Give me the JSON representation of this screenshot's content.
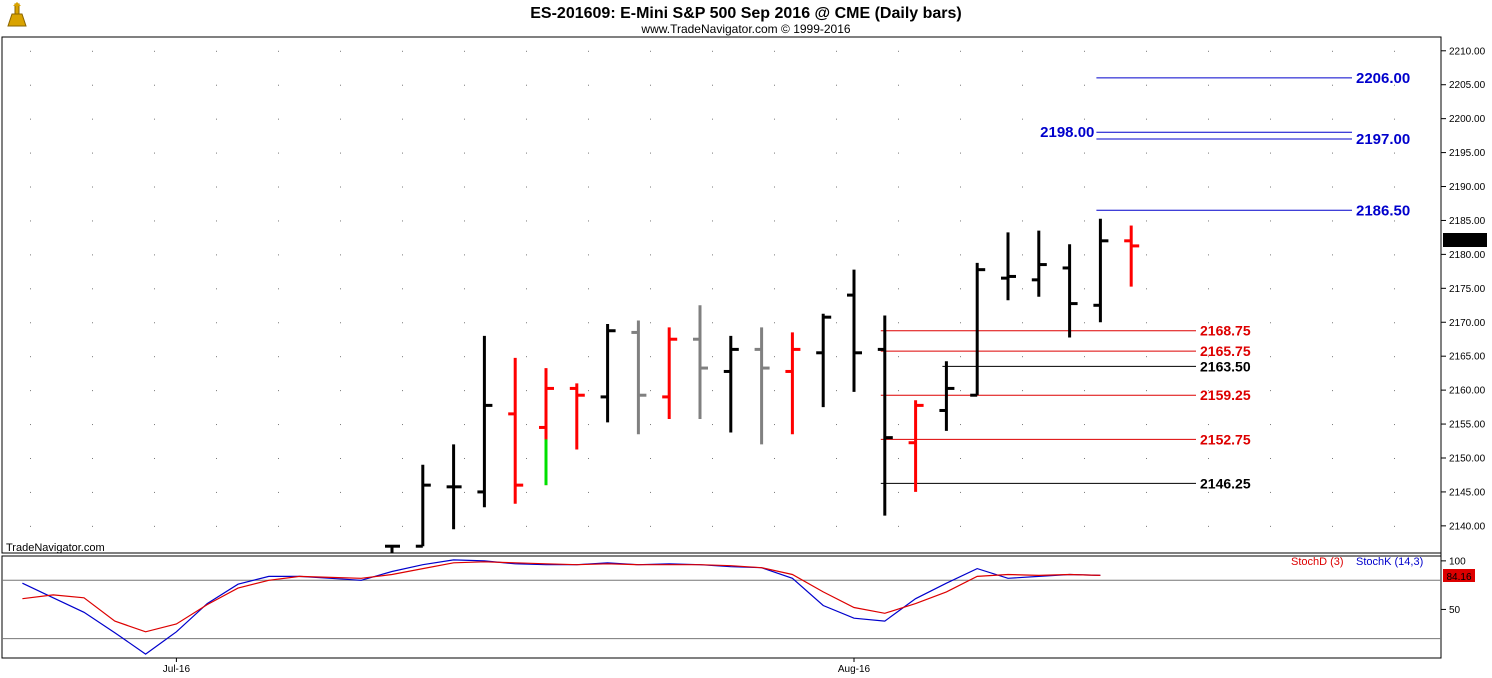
{
  "header": {
    "title": "ES-201609:  E-Mini S&P 500 Sep 2016 @ CME  (Daily bars)",
    "subtitle": "www.TradeNavigator.com © 1999-2016"
  },
  "watermark": "TradeNavigator.com",
  "colors": {
    "up_bar": "#000000",
    "down_bar": "#ff0000",
    "inside_bar": "#808080",
    "highlight_bar": "#00e000",
    "resistance": "#0000cc",
    "support": "#dd0000",
    "stochD": "#dd0000",
    "stochK": "#0000cc"
  },
  "chart_data": [
    {
      "type": "ohlc",
      "ylim": [
        2136,
        2211
      ],
      "yticks": [
        "2140.00",
        "2145.00",
        "2150.00",
        "2155.00",
        "2160.00",
        "2165.00",
        "2170.00",
        "2175.00",
        "2180.00",
        "2185.00",
        "2190.00",
        "2195.00",
        "2200.00",
        "2205.00",
        "2210.00"
      ],
      "last_price": "2181.25",
      "x_labels": [
        {
          "label": "Jul-16",
          "at_bar": -7
        },
        {
          "label": "Aug-16",
          "at_bar": 15
        }
      ],
      "bars": [
        {
          "o": 2137.0,
          "h": 2137.0,
          "l": 2136.0,
          "c": 2137.0,
          "color": "up"
        },
        {
          "o": 2137.0,
          "h": 2149.0,
          "l": 2137.0,
          "c": 2146.0,
          "color": "up"
        },
        {
          "o": 2145.75,
          "h": 2152.0,
          "l": 2139.5,
          "c": 2145.75,
          "color": "up"
        },
        {
          "o": 2145.0,
          "h": 2168.0,
          "l": 2142.75,
          "c": 2157.75,
          "color": "up"
        },
        {
          "o": 2156.5,
          "h": 2164.75,
          "l": 2143.25,
          "c": 2146.0,
          "color": "down"
        },
        {
          "o": 2154.5,
          "h": 2163.25,
          "l": 2146.0,
          "c": 2160.25,
          "color": "down",
          "highlight_low": 2152.75
        },
        {
          "o": 2160.25,
          "h": 2161.0,
          "l": 2151.25,
          "c": 2159.25,
          "color": "down"
        },
        {
          "o": 2159.0,
          "h": 2169.75,
          "l": 2155.25,
          "c": 2168.75,
          "color": "up"
        },
        {
          "o": 2168.5,
          "h": 2170.25,
          "l": 2153.5,
          "c": 2159.25,
          "color": "inside"
        },
        {
          "o": 2159.0,
          "h": 2169.25,
          "l": 2155.75,
          "c": 2167.5,
          "color": "down"
        },
        {
          "o": 2167.5,
          "h": 2172.5,
          "l": 2155.75,
          "c": 2163.25,
          "color": "inside"
        },
        {
          "o": 2162.75,
          "h": 2168.0,
          "l": 2153.75,
          "c": 2166.0,
          "color": "up"
        },
        {
          "o": 2166.0,
          "h": 2169.25,
          "l": 2152.0,
          "c": 2163.25,
          "color": "inside"
        },
        {
          "o": 2162.75,
          "h": 2168.5,
          "l": 2153.5,
          "c": 2166.0,
          "color": "down"
        },
        {
          "o": 2165.5,
          "h": 2171.25,
          "l": 2157.5,
          "c": 2170.75,
          "color": "up"
        },
        {
          "o": 2174.0,
          "h": 2177.75,
          "l": 2159.75,
          "c": 2165.5,
          "color": "up"
        },
        {
          "o": 2166.0,
          "h": 2171.0,
          "l": 2141.5,
          "c": 2153.0,
          "color": "up"
        },
        {
          "o": 2152.25,
          "h": 2158.5,
          "l": 2145.0,
          "c": 2157.75,
          "color": "down"
        },
        {
          "o": 2157.0,
          "h": 2164.25,
          "l": 2154.0,
          "c": 2160.25,
          "color": "up"
        },
        {
          "o": 2159.25,
          "h": 2178.75,
          "l": 2159.25,
          "c": 2177.75,
          "color": "up"
        },
        {
          "o": 2176.5,
          "h": 2183.25,
          "l": 2173.25,
          "c": 2176.75,
          "color": "up"
        },
        {
          "o": 2176.25,
          "h": 2183.5,
          "l": 2173.75,
          "c": 2178.5,
          "color": "up"
        },
        {
          "o": 2178.0,
          "h": 2181.5,
          "l": 2167.75,
          "c": 2172.75,
          "color": "up"
        },
        {
          "o": 2172.5,
          "h": 2185.25,
          "l": 2170.0,
          "c": 2182.0,
          "color": "up"
        },
        {
          "o": 2182.0,
          "h": 2184.25,
          "l": 2175.25,
          "c": 2181.25,
          "color": "down"
        }
      ],
      "levels": [
        {
          "value": 2206.0,
          "label": "2206.00",
          "group": "resistance",
          "from_bar": 23,
          "label_side": "right"
        },
        {
          "value": 2198.0,
          "label": "2198.00",
          "group": "resistance",
          "from_bar": 23,
          "label_side": "left"
        },
        {
          "value": 2197.0,
          "label": "2197.00",
          "group": "resistance",
          "from_bar": 23,
          "label_side": "right"
        },
        {
          "value": 2186.5,
          "label": "2186.50",
          "group": "resistance",
          "from_bar": 23,
          "label_side": "right"
        },
        {
          "value": 2168.75,
          "label": "2168.75",
          "group": "support",
          "from_bar": 16,
          "label_side": "right"
        },
        {
          "value": 2165.75,
          "label": "2165.75",
          "group": "support",
          "from_bar": 16,
          "label_side": "right"
        },
        {
          "value": 2163.5,
          "label": "2163.50",
          "group": "support_black",
          "from_bar": 18,
          "label_side": "right"
        },
        {
          "value": 2159.25,
          "label": "2159.25",
          "group": "support",
          "from_bar": 16,
          "label_side": "right"
        },
        {
          "value": 2152.75,
          "label": "2152.75",
          "group": "support",
          "from_bar": 16,
          "label_side": "right"
        },
        {
          "value": 2146.25,
          "label": "2146.25",
          "group": "support_black",
          "from_bar": 16,
          "label_side": "right"
        }
      ]
    },
    {
      "type": "line",
      "name": "stochastic",
      "ylim": [
        0,
        105
      ],
      "yticks": [
        "100",
        "50"
      ],
      "reference_lines": [
        80,
        20
      ],
      "last_value": "84.16",
      "legend": [
        {
          "name": "StochD (3)",
          "color": "stochD"
        },
        {
          "name": "StochK (14,3)",
          "color": "stochK"
        }
      ],
      "x_start_bar": -12,
      "series": [
        {
          "name": "StochK (14,3)",
          "values": [
            77,
            62,
            47,
            26,
            4,
            27,
            56,
            76,
            84,
            84,
            82,
            80,
            89,
            96,
            101,
            100,
            97,
            96,
            96,
            98,
            96,
            97,
            96,
            94,
            93,
            82,
            54,
            41,
            38,
            61,
            77,
            92,
            82,
            84,
            86,
            85
          ]
        },
        {
          "name": "StochD (3)",
          "values": [
            61,
            65,
            62,
            38,
            27,
            35,
            55,
            72,
            80,
            84,
            83,
            82,
            86,
            92,
            98,
            99,
            98,
            97,
            96,
            97,
            96,
            96,
            96,
            95,
            93,
            86,
            68,
            52,
            46,
            56,
            68,
            84,
            86,
            85,
            86,
            85
          ]
        }
      ]
    }
  ]
}
